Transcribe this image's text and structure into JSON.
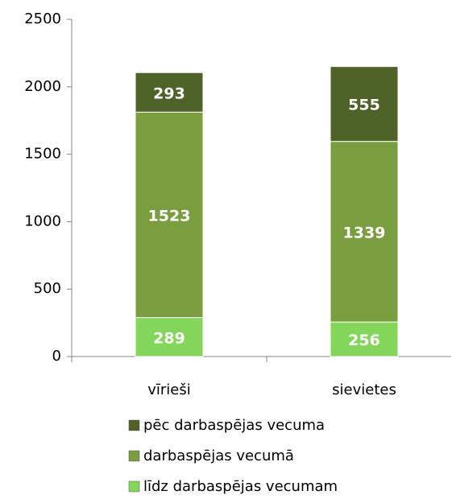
{
  "chart_data": {
    "type": "stacked_bar",
    "categories": [
      "vīrieši",
      "sievietes"
    ],
    "series": [
      {
        "name": "līdz darbaspējas vecumam",
        "color": "#84d65a",
        "values": [
          289,
          256
        ]
      },
      {
        "name": "darbaspējas vecumā",
        "color": "#7a9e3f",
        "values": [
          1523,
          1339
        ]
      },
      {
        "name": "pēc darbaspējas vecuma",
        "color": "#4f6228",
        "values": [
          293,
          555
        ]
      }
    ],
    "ylim": [
      0,
      2500
    ],
    "yticks": [
      0,
      500,
      1000,
      1500,
      2000,
      2500
    ],
    "grid": false
  }
}
